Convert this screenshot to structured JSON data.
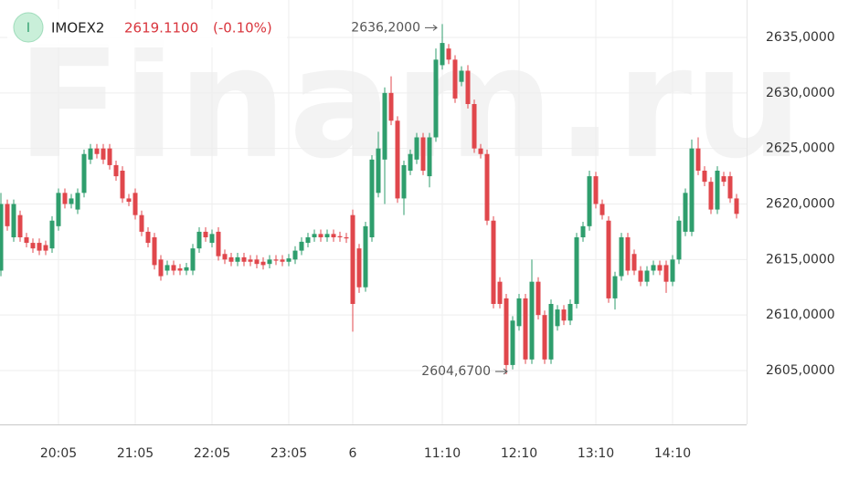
{
  "header": {
    "icon": "I",
    "ticker": "IMOEX2",
    "price": "2619.1100",
    "change": "(-0.10%)"
  },
  "chart_data": {
    "type": "candlestick",
    "watermark": "Finam.ru",
    "up_color": "#2f9e6d",
    "down_color": "#e0474c",
    "annotations": {
      "high": "2636,2000",
      "low": "2604,6700"
    },
    "categories": [
      null,
      null,
      null,
      null,
      null,
      null,
      null,
      null,
      null,
      "20:05",
      null,
      null,
      null,
      null,
      null,
      null,
      null,
      null,
      null,
      null,
      null,
      "21:05",
      null,
      null,
      null,
      null,
      null,
      null,
      null,
      null,
      null,
      null,
      null,
      "22:05",
      null,
      null,
      null,
      null,
      null,
      null,
      null,
      null,
      null,
      null,
      null,
      "23:05",
      null,
      null,
      null,
      null,
      null,
      null,
      null,
      null,
      null,
      "6",
      null,
      null,
      null,
      null,
      null,
      null,
      null,
      null,
      null,
      null,
      null,
      null,
      null,
      "11:10",
      null,
      null,
      null,
      null,
      null,
      null,
      null,
      null,
      null,
      null,
      null,
      "12:10",
      null,
      null,
      null,
      null,
      null,
      null,
      null,
      null,
      null,
      null,
      null,
      "13:10",
      null,
      null,
      null,
      null,
      null,
      null,
      null,
      null,
      null,
      null,
      null,
      "14:10",
      null,
      null,
      null,
      null,
      null,
      null,
      null,
      null,
      null,
      null
    ],
    "open": [
      2614,
      2620,
      2617,
      2619,
      2617,
      2616.5,
      2616.5,
      2616.3,
      2616,
      2618,
      2621,
      2620,
      2619.5,
      2621,
      2624,
      2625,
      2625,
      2625,
      2623.5,
      2623,
      2620.5,
      2621,
      2619,
      2617.5,
      2617,
      2615,
      2614,
      2614.5,
      2614.2,
      2614,
      2614,
      2616,
      2617.5,
      2616.5,
      2617.5,
      2615.5,
      2615.2,
      2614.8,
      2615.2,
      2615,
      2615,
      2614.8,
      2614.6,
      2615,
      2615,
      2614.8,
      2615,
      2615.8,
      2616.5,
      2617,
      2617.3,
      2617,
      2617.3,
      2617.1,
      2617,
      2619,
      2616,
      2612.5,
      2617,
      2621,
      2624,
      2630,
      2627.5,
      2620.5,
      2623,
      2624,
      2626,
      2622.5,
      2626,
      2632.5,
      2634,
      2633,
      2631,
      2632,
      2629,
      2625,
      2624.5,
      2618.5,
      2613,
      2611.5,
      2605.5,
      2609,
      2611.5,
      2606,
      2613,
      2610,
      2606,
      2609,
      2610.5,
      2609.5,
      2611,
      2617,
      2618,
      2622.5,
      2620,
      2618.5,
      2611.5,
      2613.5,
      2617,
      2615.5,
      2614,
      2613,
      2614,
      2614.5,
      2614.5,
      2613,
      2615,
      2617.5,
      2617.5,
      2625,
      2623,
      2622,
      2619.5,
      2622.5,
      2622.5,
      2620.5
    ],
    "high": [
      2621,
      2620.4,
      2620.4,
      2619.4,
      2617.4,
      2616.9,
      2616.9,
      2616.7,
      2618.9,
      2621.4,
      2621.4,
      2620.9,
      2621.4,
      2624.9,
      2625.4,
      2625.4,
      2625.4,
      2625.4,
      2623.9,
      2623.4,
      2620.9,
      2621.4,
      2619.4,
      2617.9,
      2617.4,
      2615.4,
      2614.9,
      2614.9,
      2614.6,
      2614.7,
      2616.4,
      2617.9,
      2617.9,
      2617.7,
      2617.9,
      2615.9,
      2615.6,
      2615.6,
      2615.6,
      2615.4,
      2615.4,
      2615.2,
      2615.4,
      2615.4,
      2615.4,
      2615.5,
      2616.2,
      2617,
      2617.4,
      2617.7,
      2617.7,
      2617.7,
      2617.7,
      2617.5,
      2617.4,
      2619.5,
      2616.4,
      2618.4,
      2624.4,
      2626.5,
      2630.5,
      2631.5,
      2627.9,
      2623.9,
      2624.9,
      2626.4,
      2626.4,
      2626.4,
      2634,
      2636.2,
      2634.4,
      2633.4,
      2632.4,
      2632.5,
      2629.4,
      2625.4,
      2624.9,
      2618.9,
      2613.4,
      2611.9,
      2609.9,
      2611.9,
      2611.9,
      2615,
      2613.4,
      2610.4,
      2611.4,
      2610.9,
      2610.9,
      2611.4,
      2617.4,
      2618.4,
      2623,
      2622.9,
      2620.4,
      2618.9,
      2613.9,
      2617.4,
      2617.4,
      2615.9,
      2614.4,
      2614.4,
      2614.9,
      2614.9,
      2614.9,
      2615.4,
      2618.9,
      2621.4,
      2625.8,
      2626,
      2623.4,
      2622.4,
      2623.4,
      2622.9,
      2622.9,
      2620.9
    ],
    "low": [
      2613.5,
      2617.6,
      2616.6,
      2616.6,
      2616.1,
      2615.6,
      2615.4,
      2615.4,
      2615.6,
      2617.6,
      2619.6,
      2619.6,
      2619.1,
      2620.6,
      2623.6,
      2624.1,
      2623.6,
      2623.1,
      2622.1,
      2620.1,
      2619.8,
      2618.6,
      2617.1,
      2616.1,
      2614.1,
      2613.1,
      2613.6,
      2613.6,
      2613.6,
      2613.6,
      2613.6,
      2615.6,
      2616.6,
      2616.1,
      2614.9,
      2614.6,
      2614.4,
      2614.4,
      2614.4,
      2614.4,
      2614.2,
      2614.1,
      2614.2,
      2614.5,
      2614.4,
      2614.4,
      2614.6,
      2615.4,
      2616.1,
      2616.6,
      2616.6,
      2616.6,
      2616.6,
      2616.6,
      2616.5,
      2608.5,
      2612,
      2612.1,
      2616.6,
      2620.6,
      2620,
      2627.1,
      2620.1,
      2619,
      2622.6,
      2623.6,
      2622.6,
      2621.5,
      2625.6,
      2632.1,
      2632.6,
      2629.1,
      2630.6,
      2628.6,
      2624.6,
      2624.1,
      2618.1,
      2610.6,
      2610.6,
      2604.67,
      2605.1,
      2608.6,
      2605.6,
      2605.6,
      2609.6,
      2605.6,
      2605.6,
      2608.6,
      2609.1,
      2609.1,
      2610.6,
      2616.6,
      2617.6,
      2619.6,
      2618.6,
      2611.1,
      2610.5,
      2613.1,
      2613.6,
      2613.6,
      2612.6,
      2612.6,
      2613.6,
      2613.6,
      2612,
      2612.6,
      2614.6,
      2617.1,
      2617.1,
      2622.6,
      2621.6,
      2619.1,
      2619.1,
      2621.6,
      2620.1,
      2618.7
    ],
    "close": [
      2620,
      2618,
      2620,
      2617,
      2616.5,
      2616,
      2615.8,
      2615.8,
      2618.5,
      2621,
      2620,
      2620.5,
      2621,
      2624.5,
      2625,
      2624.5,
      2624,
      2623.5,
      2622.5,
      2620.5,
      2620.2,
      2619,
      2617.5,
      2616.5,
      2614.5,
      2613.5,
      2614.5,
      2614,
      2614,
      2614.3,
      2616,
      2617.5,
      2617,
      2617.3,
      2615.3,
      2615,
      2614.8,
      2615.2,
      2614.8,
      2614.8,
      2614.6,
      2614.5,
      2615,
      2614.9,
      2614.8,
      2615.1,
      2615.8,
      2616.6,
      2617,
      2617.3,
      2617,
      2617.3,
      2617,
      2617,
      2616.9,
      2611,
      2612.5,
      2618,
      2624,
      2625,
      2630,
      2627.5,
      2620.5,
      2623.5,
      2624.5,
      2626,
      2623,
      2626,
      2633,
      2634.5,
      2633,
      2629.5,
      2632,
      2629,
      2625,
      2624.5,
      2618.5,
      2611,
      2611,
      2605.5,
      2609.5,
      2611.5,
      2606,
      2613,
      2610,
      2606,
      2611,
      2610.5,
      2609.5,
      2611,
      2617,
      2618,
      2622.5,
      2620,
      2619,
      2611.5,
      2613.5,
      2617,
      2614,
      2614,
      2613,
      2614,
      2614.5,
      2614,
      2613,
      2615,
      2618.5,
      2621,
      2625,
      2623,
      2622,
      2619.5,
      2623,
      2622,
      2620.5,
      2619.11
    ],
    "ylim": [
      2600.15,
      2638.37
    ],
    "yticks": [
      {
        "value": 2605,
        "label": "2605,0000"
      },
      {
        "value": 2610,
        "label": "2610,0000"
      },
      {
        "value": 2615,
        "label": "2615,0000"
      },
      {
        "value": 2620,
        "label": "2620,0000"
      },
      {
        "value": 2625,
        "label": "2625,0000"
      },
      {
        "value": 2630,
        "label": "2630,0000"
      },
      {
        "value": 2635,
        "label": "2635,0000"
      }
    ],
    "grid": true
  }
}
